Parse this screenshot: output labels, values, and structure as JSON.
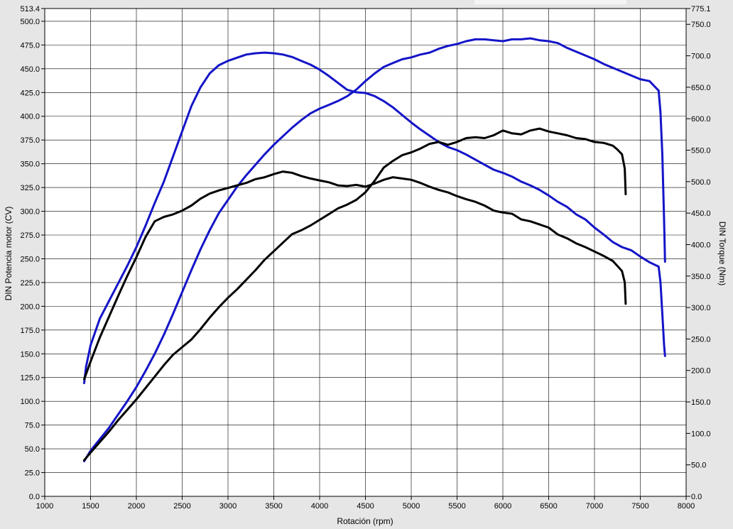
{
  "chart_data": {
    "type": "line",
    "title": "",
    "xlabel": "Rotación (rpm)",
    "ylabel": "DIN Potencia motor (CV)",
    "y2label": "DIN Torque (Nm)",
    "xlim": [
      1000,
      8000
    ],
    "ylim": [
      0,
      513.4
    ],
    "y2lim": [
      0,
      775.1
    ],
    "grid": true,
    "x_ticks": [
      "1000",
      "1500",
      "2000",
      "2500",
      "3000",
      "3500",
      "4000",
      "4500",
      "5000",
      "5500",
      "6000",
      "6500",
      "7000",
      "7500",
      "8000"
    ],
    "y_ticks": [
      "0.0",
      "25.0",
      "50.0",
      "75.0",
      "100.0",
      "125.0",
      "150.0",
      "175.0",
      "200.0",
      "225.0",
      "250.0",
      "275.0",
      "300.0",
      "325.0",
      "350.0",
      "375.0",
      "400.0",
      "425.0",
      "450.0",
      "475.0",
      "500.0",
      "513.4"
    ],
    "y2_ticks": [
      "0.0",
      "50.0",
      "100.0",
      "150.0",
      "200.0",
      "250.0",
      "300.0",
      "350.0",
      "400.0",
      "450.0",
      "500.0",
      "550.0",
      "600.0",
      "650.0",
      "700.0",
      "750.0",
      "775.1"
    ],
    "series": [
      {
        "color": "#1414c8",
        "axis": "left",
        "x": [
          1430,
          1500,
          1600,
          1700,
          1800,
          1900,
          2000,
          2100,
          2200,
          2300,
          2400,
          2500,
          2600,
          2700,
          2800,
          2900,
          3000,
          3100,
          3200,
          3300,
          3400,
          3500,
          3600,
          3700,
          3800,
          3900,
          4000,
          4100,
          4200,
          4300,
          4400,
          4500,
          4600,
          4700,
          4800,
          4900,
          5000,
          5100,
          5200,
          5300,
          5400,
          5500,
          5600,
          5700,
          5800,
          5900,
          6000,
          6100,
          6200,
          6300,
          6400,
          6500,
          6600,
          6700,
          6800,
          6900,
          7000,
          7100,
          7200,
          7300,
          7400,
          7500,
          7600,
          7650,
          7700,
          7720,
          7740,
          7760,
          7770
        ],
        "y": [
          37,
          48,
          60,
          72,
          86,
          100,
          115,
          132,
          150,
          170,
          192,
          215,
          238,
          260,
          280,
          298,
          312,
          326,
          338,
          349,
          360,
          370,
          379,
          388,
          396,
          403,
          408,
          412,
          416,
          421,
          428,
          437,
          445,
          452,
          456,
          460,
          462,
          465,
          467,
          471,
          474,
          476,
          479,
          481,
          481,
          480,
          479,
          481,
          481,
          482,
          480,
          479,
          477,
          472,
          468,
          464,
          460,
          455,
          451,
          447,
          443,
          439,
          437,
          432,
          427,
          404,
          360,
          290,
          247
        ]
      },
      {
        "color": "#1414c8",
        "axis": "right",
        "x": [
          1430,
          1450,
          1500,
          1600,
          1700,
          1800,
          1900,
          2000,
          2100,
          2200,
          2300,
          2400,
          2500,
          2600,
          2700,
          2800,
          2900,
          3000,
          3100,
          3200,
          3300,
          3400,
          3500,
          3600,
          3700,
          3800,
          3900,
          4000,
          4100,
          4200,
          4300,
          4400,
          4500,
          4600,
          4700,
          4800,
          4900,
          5000,
          5100,
          5200,
          5300,
          5400,
          5500,
          5600,
          5700,
          5800,
          5900,
          6000,
          6100,
          6200,
          6300,
          6400,
          6500,
          6600,
          6700,
          6800,
          6900,
          7000,
          7100,
          7200,
          7300,
          7400,
          7500,
          7600,
          7700,
          7720,
          7740,
          7760,
          7770
        ],
        "y": [
          180,
          205,
          240,
          282,
          310,
          338,
          366,
          396,
          430,
          466,
          500,
          540,
          580,
          620,
          650,
          672,
          685,
          692,
          697,
          702,
          704,
          705,
          704,
          702,
          698,
          692,
          686,
          678,
          668,
          657,
          646,
          642,
          641,
          636,
          628,
          618,
          606,
          594,
          583,
          573,
          563,
          555,
          550,
          543,
          535,
          527,
          519,
          514,
          508,
          500,
          494,
          487,
          478,
          468,
          460,
          448,
          440,
          427,
          416,
          404,
          396,
          391,
          381,
          372,
          365,
          340,
          290,
          240,
          223
        ]
      },
      {
        "color": "#000000",
        "axis": "left",
        "x": [
          1430,
          1500,
          1600,
          1700,
          1800,
          1900,
          2000,
          2100,
          2200,
          2300,
          2400,
          2500,
          2600,
          2700,
          2800,
          2900,
          3000,
          3100,
          3200,
          3300,
          3400,
          3500,
          3600,
          3700,
          3800,
          3900,
          4000,
          4100,
          4200,
          4300,
          4400,
          4500,
          4600,
          4700,
          4800,
          4900,
          5000,
          5100,
          5200,
          5300,
          5400,
          5500,
          5600,
          5700,
          5800,
          5900,
          6000,
          6100,
          6200,
          6300,
          6400,
          6500,
          6600,
          6700,
          6800,
          6900,
          7000,
          7100,
          7200,
          7250,
          7300,
          7330,
          7340
        ],
        "y": [
          38,
          46,
          57,
          68,
          80,
          91,
          102,
          114,
          126,
          138,
          149,
          157,
          165,
          176,
          188,
          199,
          209,
          218,
          228,
          238,
          249,
          258,
          267,
          276,
          280,
          285,
          291,
          297,
          303,
          307,
          312,
          320,
          332,
          346,
          353,
          359,
          362,
          366,
          371,
          373,
          370,
          373,
          377,
          378,
          377,
          380,
          385,
          382,
          381,
          385,
          387,
          384,
          382,
          380,
          377,
          376,
          373,
          372,
          369,
          365,
          360,
          345,
          318
        ]
      },
      {
        "color": "#000000",
        "axis": "right",
        "x": [
          1430,
          1500,
          1600,
          1700,
          1800,
          1900,
          2000,
          2100,
          2200,
          2300,
          2400,
          2500,
          2600,
          2700,
          2800,
          2900,
          3000,
          3100,
          3200,
          3300,
          3400,
          3500,
          3600,
          3700,
          3800,
          3900,
          4000,
          4100,
          4200,
          4300,
          4400,
          4500,
          4600,
          4700,
          4800,
          4900,
          5000,
          5100,
          5200,
          5300,
          5400,
          5500,
          5600,
          5700,
          5800,
          5900,
          6000,
          6100,
          6200,
          6300,
          6400,
          6500,
          6600,
          6700,
          6800,
          6900,
          7000,
          7100,
          7200,
          7250,
          7300,
          7330,
          7340
        ],
        "y": [
          186,
          214,
          252,
          285,
          318,
          350,
          380,
          412,
          437,
          444,
          448,
          454,
          462,
          473,
          481,
          486,
          490,
          494,
          498,
          504,
          507,
          512,
          516,
          514,
          509,
          505,
          502,
          499,
          494,
          493,
          495,
          492,
          497,
          503,
          507,
          505,
          503,
          498,
          492,
          487,
          483,
          477,
          472,
          468,
          462,
          454,
          451,
          449,
          440,
          437,
          432,
          427,
          416,
          410,
          402,
          396,
          389,
          382,
          374,
          366,
          358,
          340,
          306
        ]
      }
    ]
  }
}
